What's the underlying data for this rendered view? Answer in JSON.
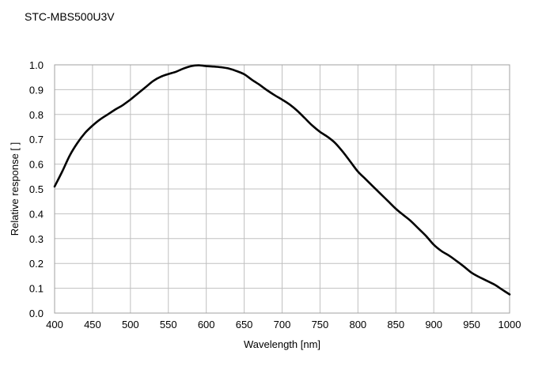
{
  "title": "STC-MBS500U3V",
  "chart_data": {
    "type": "line",
    "title": "STC-MBS500U3V",
    "xlabel": "Wavelength [nm]",
    "ylabel": "Relative response [ ]",
    "xlim": [
      400,
      1000
    ],
    "ylim": [
      0.0,
      1.0
    ],
    "x_ticks": [
      400,
      450,
      500,
      550,
      600,
      650,
      700,
      750,
      800,
      850,
      900,
      950,
      1000
    ],
    "y_ticks": [
      "0.0",
      "0.1",
      "0.2",
      "0.3",
      "0.4",
      "0.5",
      "0.6",
      "0.7",
      "0.8",
      "0.9",
      "1.0"
    ],
    "grid": true,
    "legend": "none",
    "line_color": "#000000",
    "grid_color": "#c0c0c0",
    "series": [
      {
        "x": [
          400,
          410,
          420,
          430,
          440,
          450,
          460,
          470,
          480,
          490,
          500,
          510,
          520,
          530,
          540,
          550,
          560,
          570,
          580,
          590,
          600,
          610,
          620,
          630,
          640,
          650,
          660,
          670,
          680,
          690,
          700,
          710,
          720,
          730,
          740,
          750,
          760,
          770,
          780,
          790,
          800,
          810,
          820,
          830,
          840,
          850,
          860,
          870,
          880,
          890,
          900,
          910,
          920,
          930,
          940,
          950,
          960,
          970,
          980,
          990,
          1000
        ],
        "y": [
          0.51,
          0.57,
          0.635,
          0.685,
          0.725,
          0.755,
          0.78,
          0.8,
          0.82,
          0.838,
          0.86,
          0.885,
          0.91,
          0.935,
          0.952,
          0.963,
          0.972,
          0.985,
          0.995,
          0.998,
          0.995,
          0.993,
          0.99,
          0.985,
          0.975,
          0.962,
          0.94,
          0.92,
          0.898,
          0.878,
          0.86,
          0.84,
          0.815,
          0.785,
          0.755,
          0.73,
          0.71,
          0.685,
          0.65,
          0.61,
          0.57,
          0.54,
          0.51,
          0.48,
          0.45,
          0.42,
          0.395,
          0.37,
          0.34,
          0.31,
          0.275,
          0.25,
          0.232,
          0.21,
          0.187,
          0.162,
          0.145,
          0.13,
          0.115,
          0.095,
          0.075
        ]
      }
    ]
  }
}
